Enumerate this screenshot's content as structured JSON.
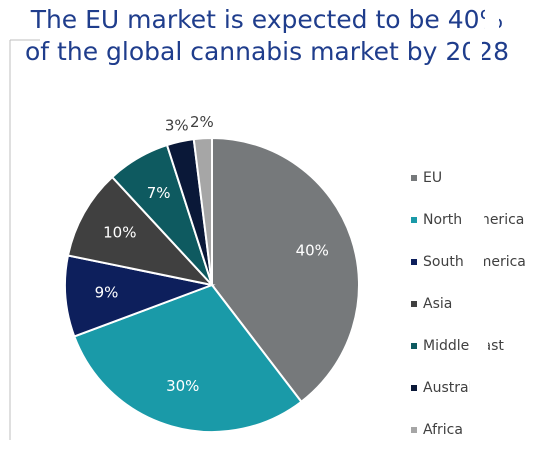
{
  "chart_data": {
    "type": "pie",
    "title_lines": [
      "The EU market is expected to be 40%",
      "of the global cannabis market by 2028"
    ],
    "categories": [
      "EU",
      "North America",
      "South America",
      "Asia",
      "Middle East",
      "Australia",
      "Africa"
    ],
    "values": [
      40,
      30,
      9,
      10,
      7,
      3,
      2
    ],
    "value_labels": [
      "40%",
      "30%",
      "9%",
      "10%",
      "7%",
      "3%",
      "2%"
    ],
    "colors": [
      "#76797b",
      "#1a9aa8",
      "#0d1f5c",
      "#404040",
      "#0e5a60",
      "#0a1838",
      "#a6a6a6"
    ],
    "legend": "right"
  }
}
